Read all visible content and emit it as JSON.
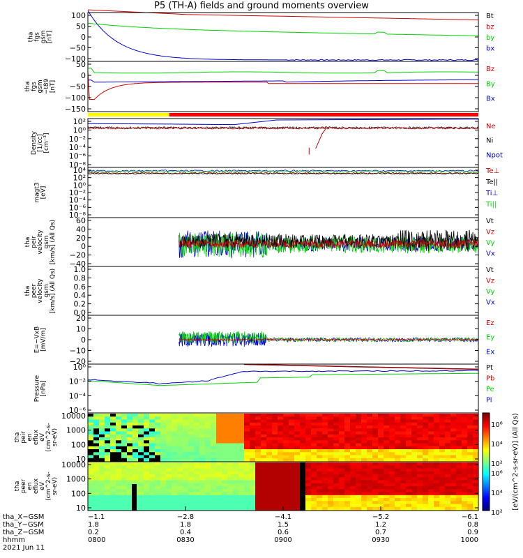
{
  "title": "P5 (TH-A) fields and ground moments overview",
  "colors": {
    "black": "#000000",
    "red": "#d40000",
    "green": "#00d400",
    "blue": "#0000d4",
    "yellow": "#ffff00",
    "barred": "#ff0000"
  },
  "panels": [
    {
      "id": "fgs",
      "ylabel": [
        "tha",
        "fgs",
        "gsm",
        "[nT]"
      ],
      "ticks": [
        "100",
        "50",
        "0",
        "−50",
        "−100"
      ],
      "legend": [
        {
          "t": "Bt",
          "c": "black"
        },
        {
          "t": "bz",
          "c": "red"
        },
        {
          "t": "by",
          "c": "green"
        },
        {
          "t": "bx",
          "c": "blue"
        }
      ]
    },
    {
      "id": "fgs_t89",
      "ylabel": [
        "tha",
        "fgs",
        "gsm",
        "−t89",
        "[nT]"
      ],
      "ticks": [
        "50",
        "0",
        "−50",
        "−100",
        "−150"
      ],
      "legend": [
        {
          "t": "Bz",
          "c": "red"
        },
        {
          "t": "By",
          "c": "green"
        },
        {
          "t": "Bx",
          "c": "blue"
        }
      ]
    },
    {
      "id": "density",
      "ylabel": [
        "Density",
        "[1/cc]",
        "[cm⁻³]"
      ],
      "ticks": [
        "10²",
        "10⁰",
        "10⁻²",
        "10⁻⁴",
        "10⁻⁶",
        "10⁻⁸"
      ],
      "legend": [
        {
          "t": "Ne",
          "c": "red"
        },
        {
          "t": "Ni",
          "c": "black"
        },
        {
          "t": "Npot",
          "c": "blue"
        }
      ]
    },
    {
      "id": "temp",
      "ylabel": [
        "magt3",
        "[eV]"
      ],
      "ticks": [
        "10⁴",
        "10²",
        "10⁰",
        "10⁻²",
        "10⁻⁴",
        "10⁻⁶",
        "10⁻⁸"
      ],
      "legend": [
        {
          "t": "Te⊥",
          "c": "red"
        },
        {
          "t": "Te||",
          "c": "black"
        },
        {
          "t": "Ti⊥",
          "c": "blue"
        },
        {
          "t": "Ti||",
          "c": "green"
        }
      ]
    },
    {
      "id": "peir_v",
      "ylabel": [
        "tha",
        "peir",
        "velocity",
        "gsm",
        "[km/s] (All Qs)"
      ],
      "ticks": [
        "60",
        "40",
        "20",
        "0",
        "−20",
        "−40"
      ],
      "legend": [
        {
          "t": "Vt",
          "c": "black"
        },
        {
          "t": "Vz",
          "c": "red"
        },
        {
          "t": "Vy",
          "c": "green"
        },
        {
          "t": "Vx",
          "c": "blue"
        }
      ]
    },
    {
      "id": "peer_v",
      "ylabel": [
        "tha",
        "peer",
        "velocity",
        "gsm",
        "[km/s] (All Qs)"
      ],
      "ticks": [
        "1.0",
        "0.8",
        "0.6",
        "0.4",
        "0.2",
        "0.0"
      ],
      "legend": [
        {
          "t": "Vt",
          "c": "black"
        },
        {
          "t": "Vz",
          "c": "red"
        },
        {
          "t": "Vy",
          "c": "green"
        },
        {
          "t": "Vx",
          "c": "blue"
        }
      ]
    },
    {
      "id": "efield",
      "ylabel": [
        "E=−VxB",
        "[mV/m]"
      ],
      "ticks": [
        "20",
        "10",
        "0",
        "−10",
        "−20"
      ],
      "legend": [
        {
          "t": "Ez",
          "c": "red"
        },
        {
          "t": "Ey",
          "c": "green"
        },
        {
          "t": "Ex",
          "c": "blue"
        }
      ]
    },
    {
      "id": "pressure",
      "ylabel": [
        "Pressure",
        "[nPa]"
      ],
      "ticks": [
        "10⁰",
        "10⁻²",
        "10⁻⁴",
        "10⁻⁶"
      ],
      "legend": [
        {
          "t": "Pt",
          "c": "black"
        },
        {
          "t": "Pb",
          "c": "red"
        },
        {
          "t": "Pe",
          "c": "green"
        },
        {
          "t": "Pi",
          "c": "blue"
        }
      ]
    },
    {
      "id": "peir_spec",
      "ylabel": [
        "tha",
        "peir",
        "en",
        "eflux",
        "eV",
        "(cm^2-s-",
        "sr-eV)"
      ],
      "ticks": [
        "10000",
        "1000",
        "100",
        "10"
      ],
      "legend": []
    },
    {
      "id": "peer_spec",
      "ylabel": [
        "tha",
        "peer",
        "en",
        "eflux",
        "eV",
        "(cm^2-s-",
        "sr-eV)"
      ],
      "ticks": [
        "10000",
        "1000",
        "100",
        "10"
      ],
      "legend": []
    }
  ],
  "colorbar": {
    "label": "[eV/(cm^2-s-sr-eV)] (All Qs)",
    "ticks": [
      "10⁶",
      "10⁴",
      "10²"
    ]
  },
  "xaxis": {
    "rows": [
      {
        "label": "tha_X−GSM",
        "values": [
          "−1.1",
          "−2.8",
          "−4.1",
          "−5.2",
          "−6.1"
        ]
      },
      {
        "label": "tha_Y−GSM",
        "values": [
          "1.8",
          "1.8",
          "1.5",
          "1.2",
          "0.8"
        ]
      },
      {
        "label": "tha_Z−GSM",
        "values": [
          "0.2",
          "0.4",
          "0.6",
          "0.7",
          "0.9"
        ]
      },
      {
        "label": "hhmm",
        "values": [
          "0800",
          "0830",
          "0900",
          "0930",
          "1000"
        ]
      }
    ],
    "date": "2021 Jun 11"
  },
  "chart_data": {
    "type": "line",
    "title": "P5 (TH-A) fields and ground moments overview",
    "time_range": [
      "0800",
      "1000"
    ],
    "series_summary": [
      {
        "panel": "fgs",
        "name": "bz",
        "points": [
          [
            0,
            115
          ],
          [
            30,
            95
          ],
          [
            60,
            88
          ],
          [
            90,
            82
          ],
          [
            120,
            75
          ]
        ]
      },
      {
        "panel": "fgs",
        "name": "by",
        "points": [
          [
            0,
            60
          ],
          [
            15,
            48
          ],
          [
            30,
            40
          ],
          [
            60,
            35
          ],
          [
            90,
            22
          ],
          [
            120,
            7
          ]
        ]
      },
      {
        "panel": "fgs",
        "name": "bx",
        "points": [
          [
            0,
            110
          ],
          [
            10,
            5
          ],
          [
            20,
            -70
          ],
          [
            30,
            -97
          ],
          [
            60,
            -100
          ],
          [
            90,
            -97
          ],
          [
            120,
            -98
          ]
        ]
      },
      {
        "panel": "efield",
        "name": "range",
        "ylim": [
          -20,
          20
        ]
      },
      {
        "panel": "peir_v",
        "name": "Vt",
        "ylim": [
          -40,
          60
        ]
      }
    ]
  }
}
